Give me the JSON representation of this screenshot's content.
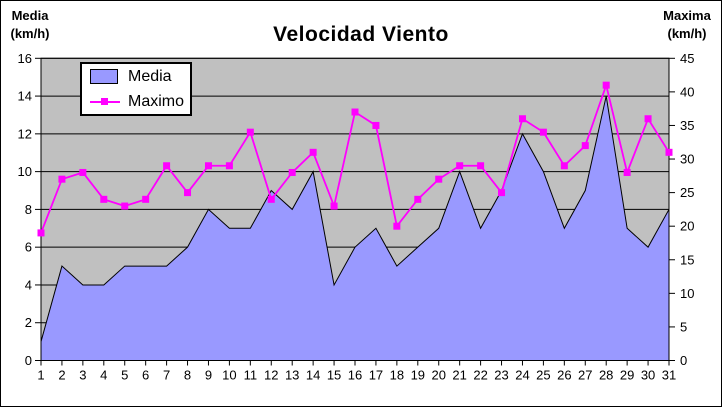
{
  "title": "Velocidad Viento",
  "left_axis": {
    "label_line1": "Media",
    "label_line2": "(km/h)",
    "min": 0,
    "max": 16,
    "step": 2,
    "tick_labels": [
      "0",
      "2",
      "4",
      "6",
      "8",
      "10",
      "12",
      "14",
      "16"
    ]
  },
  "right_axis": {
    "label_line1": "Maxima",
    "label_line2": "(km/h)",
    "min": 0,
    "max": 45,
    "step": 5,
    "tick_labels": [
      "0",
      "5",
      "10",
      "15",
      "20",
      "25",
      "30",
      "35",
      "40",
      "45"
    ]
  },
  "legend": {
    "items": [
      {
        "label": "Media",
        "type": "area",
        "color": "#9999FF"
      },
      {
        "label": "Maximo",
        "type": "line",
        "color": "#FF00FF"
      }
    ]
  },
  "colors": {
    "plot_background": "#C0C0C0",
    "area_fill": "#9999FF",
    "area_border": "#000000",
    "line_color": "#FF00FF",
    "gridline": "#000000",
    "text": "#000000",
    "chart_background": "#FFFFFF"
  },
  "chart_data": {
    "type": "area+line combo, dual axis",
    "title": "Velocidad Viento",
    "x": [
      1,
      2,
      3,
      4,
      5,
      6,
      7,
      8,
      9,
      10,
      11,
      12,
      13,
      14,
      15,
      16,
      17,
      18,
      19,
      20,
      21,
      22,
      23,
      24,
      25,
      26,
      27,
      28,
      29,
      30,
      31
    ],
    "series": [
      {
        "name": "Media",
        "type": "area",
        "axis": "left",
        "color": "#9999FF",
        "values": [
          1,
          5,
          4,
          4,
          5,
          5,
          5,
          6,
          8,
          7,
          7,
          9,
          8,
          10,
          4,
          6,
          7,
          5,
          6,
          7,
          10,
          7,
          9,
          12,
          10,
          7,
          9,
          14,
          7,
          6,
          8
        ]
      },
      {
        "name": "Maximo",
        "type": "line",
        "axis": "right",
        "color": "#FF00FF",
        "marker": "square",
        "values": [
          19,
          27,
          28,
          24,
          23,
          24,
          29,
          25,
          29,
          29,
          34,
          24,
          28,
          31,
          23,
          37,
          35,
          20,
          24,
          27,
          29,
          29,
          25,
          36,
          34,
          29,
          32,
          41,
          28,
          36,
          31
        ]
      }
    ],
    "left_ylabel": "Media (km/h)",
    "right_ylabel": "Maxima (km/h)",
    "xlabel": "",
    "left_ylim": [
      0,
      16
    ],
    "left_step": 2,
    "right_ylim": [
      0,
      45
    ],
    "right_step": 5,
    "grid": true,
    "plot_bg": "#C0C0C0",
    "legend_position": "top-left-inside"
  }
}
